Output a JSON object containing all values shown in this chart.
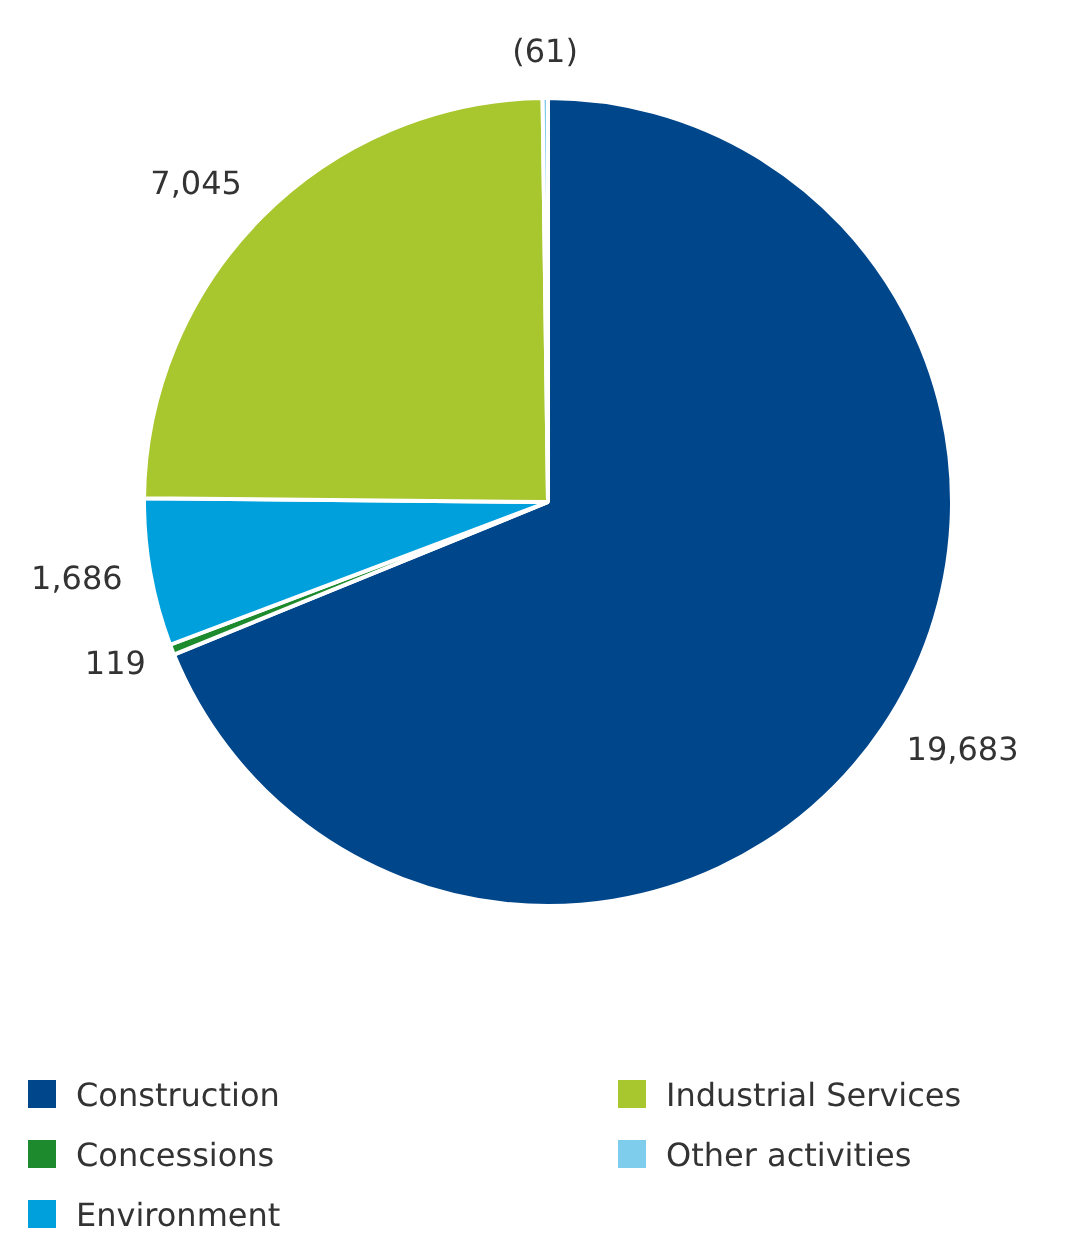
{
  "chart_data": {
    "type": "pie",
    "categories": [
      "Construction",
      "Concessions",
      "Environment",
      "Industrial Services",
      "Other activities"
    ],
    "values": [
      19683,
      119,
      1686,
      7045,
      61
    ],
    "value_labels": [
      "19,683",
      "119",
      "1,686",
      "7,045",
      "(61)"
    ],
    "colors": [
      "#00468b",
      "#1e8a2e",
      "#00a0dc",
      "#a8c62d",
      "#7fcdec"
    ],
    "legend": "bottom"
  }
}
